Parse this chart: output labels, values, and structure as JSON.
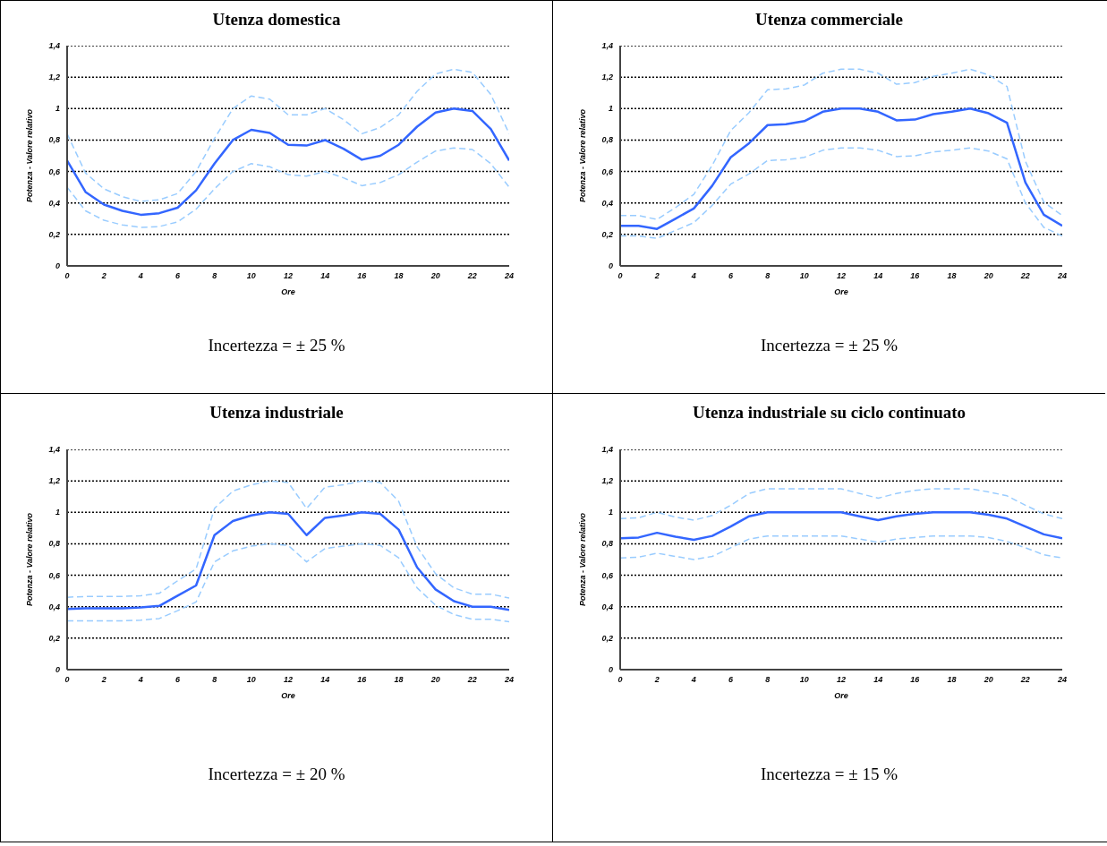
{
  "chart_data": [
    {
      "type": "line",
      "title": "Utenza domestica",
      "xlabel": "Ore",
      "ylabel": "Potenza - Valore relativo",
      "annotations": [
        "Incertezza = ± 25 %"
      ],
      "x": [
        0,
        1,
        2,
        3,
        4,
        5,
        6,
        7,
        8,
        9,
        10,
        11,
        12,
        13,
        14,
        15,
        16,
        17,
        18,
        19,
        20,
        21,
        22,
        23,
        24
      ],
      "xlim": [
        0,
        24
      ],
      "xticks": [
        0,
        2,
        4,
        6,
        8,
        10,
        12,
        14,
        16,
        18,
        20,
        22,
        24
      ],
      "ylim": [
        0,
        1.4
      ],
      "yticks": [
        {
          "value": 0,
          "label": "0"
        },
        {
          "value": 0.2,
          "label": "0,2"
        },
        {
          "value": 0.4,
          "label": "0,4"
        },
        {
          "value": 0.6,
          "label": "0,6"
        },
        {
          "value": 0.8,
          "label": "0,8"
        },
        {
          "value": 1,
          "label": "1"
        },
        {
          "value": 1.2,
          "label": "1,2"
        },
        {
          "value": 1.4,
          "label": "1,4"
        }
      ],
      "grid": "y",
      "legend": false,
      "marker": "none",
      "series": [
        {
          "color": "#99ccff",
          "line_style": "dashed",
          "values": [
            0.84,
            0.59,
            0.49,
            0.44,
            0.41,
            0.42,
            0.46,
            0.6,
            0.81,
            1.0,
            1.08,
            1.06,
            0.96,
            0.96,
            1.0,
            0.93,
            0.84,
            0.88,
            0.96,
            1.11,
            1.22,
            1.25,
            1.23,
            1.09,
            0.84
          ]
        },
        {
          "color": "#99ccff",
          "line_style": "dashed",
          "values": [
            0.5,
            0.35,
            0.29,
            0.26,
            0.245,
            0.25,
            0.28,
            0.36,
            0.49,
            0.6,
            0.65,
            0.63,
            0.58,
            0.57,
            0.6,
            0.56,
            0.51,
            0.53,
            0.58,
            0.66,
            0.73,
            0.75,
            0.74,
            0.65,
            0.5
          ]
        },
        {
          "color": "#3366ff",
          "line_style": "solid",
          "values": [
            0.67,
            0.47,
            0.39,
            0.35,
            0.325,
            0.335,
            0.37,
            0.48,
            0.65,
            0.8,
            0.865,
            0.845,
            0.77,
            0.765,
            0.8,
            0.745,
            0.675,
            0.7,
            0.77,
            0.885,
            0.975,
            1.0,
            0.985,
            0.87,
            0.67
          ]
        }
      ]
    },
    {
      "type": "line",
      "title": "Utenza commerciale",
      "xlabel": "Ore",
      "ylabel": "Potenza - Valore relativo",
      "annotations": [
        "Incertezza = ± 25 %"
      ],
      "x": [
        0,
        1,
        2,
        3,
        4,
        5,
        6,
        7,
        8,
        9,
        10,
        11,
        12,
        13,
        14,
        15,
        16,
        17,
        18,
        19,
        20,
        21,
        22,
        23,
        24
      ],
      "xlim": [
        0,
        24
      ],
      "xticks": [
        0,
        2,
        4,
        6,
        8,
        10,
        12,
        14,
        16,
        18,
        20,
        22,
        24
      ],
      "ylim": [
        0,
        1.4
      ],
      "yticks": [
        {
          "value": 0,
          "label": "0"
        },
        {
          "value": 0.2,
          "label": "0,2"
        },
        {
          "value": 0.4,
          "label": "0,4"
        },
        {
          "value": 0.6,
          "label": "0,6"
        },
        {
          "value": 0.8,
          "label": "0,8"
        },
        {
          "value": 1,
          "label": "1"
        },
        {
          "value": 1.2,
          "label": "1,2"
        },
        {
          "value": 1.4,
          "label": "1,4"
        }
      ],
      "grid": "y",
      "legend": false,
      "marker": "none",
      "series": [
        {
          "color": "#99ccff",
          "line_style": "dashed",
          "values": [
            0.32,
            0.32,
            0.295,
            0.37,
            0.455,
            0.64,
            0.86,
            0.975,
            1.12,
            1.125,
            1.15,
            1.225,
            1.25,
            1.25,
            1.225,
            1.155,
            1.165,
            1.205,
            1.225,
            1.25,
            1.215,
            1.14,
            0.665,
            0.405,
            0.32
          ]
        },
        {
          "color": "#99ccff",
          "line_style": "dashed",
          "values": [
            0.19,
            0.19,
            0.175,
            0.225,
            0.275,
            0.385,
            0.52,
            0.585,
            0.67,
            0.675,
            0.69,
            0.735,
            0.75,
            0.75,
            0.735,
            0.695,
            0.7,
            0.725,
            0.735,
            0.75,
            0.73,
            0.68,
            0.4,
            0.245,
            0.19
          ]
        },
        {
          "color": "#3366ff",
          "line_style": "solid",
          "values": [
            0.255,
            0.255,
            0.235,
            0.3,
            0.365,
            0.51,
            0.69,
            0.78,
            0.895,
            0.9,
            0.92,
            0.98,
            1.0,
            1.0,
            0.98,
            0.925,
            0.93,
            0.965,
            0.98,
            1.0,
            0.97,
            0.91,
            0.53,
            0.325,
            0.255
          ]
        }
      ]
    },
    {
      "type": "line",
      "title": "Utenza industriale",
      "xlabel": "Ore",
      "ylabel": "Potenza - Valore relativo",
      "annotations": [
        "Incertezza = ± 20 %"
      ],
      "x": [
        0,
        1,
        2,
        3,
        4,
        5,
        6,
        7,
        8,
        9,
        10,
        11,
        12,
        13,
        14,
        15,
        16,
        17,
        18,
        19,
        20,
        21,
        22,
        23,
        24
      ],
      "xlim": [
        0,
        24
      ],
      "xticks": [
        0,
        2,
        4,
        6,
        8,
        10,
        12,
        14,
        16,
        18,
        20,
        22,
        24
      ],
      "ylim": [
        0,
        1.4
      ],
      "yticks": [
        {
          "value": 0,
          "label": "0"
        },
        {
          "value": 0.2,
          "label": "0,2"
        },
        {
          "value": 0.4,
          "label": "0,4"
        },
        {
          "value": 0.6,
          "label": "0,6"
        },
        {
          "value": 0.8,
          "label": "0,8"
        },
        {
          "value": 1,
          "label": "1"
        },
        {
          "value": 1.2,
          "label": "1,2"
        },
        {
          "value": 1.4,
          "label": "1,4"
        }
      ],
      "grid": "y",
      "legend": false,
      "marker": "none",
      "series": [
        {
          "color": "#99ccff",
          "line_style": "dashed",
          "values": [
            0.46,
            0.465,
            0.465,
            0.465,
            0.47,
            0.485,
            0.565,
            0.64,
            1.025,
            1.135,
            1.175,
            1.2,
            1.19,
            1.025,
            1.16,
            1.175,
            1.2,
            1.19,
            1.07,
            0.78,
            0.61,
            0.52,
            0.48,
            0.48,
            0.455
          ]
        },
        {
          "color": "#99ccff",
          "line_style": "dashed",
          "values": [
            0.31,
            0.31,
            0.31,
            0.31,
            0.315,
            0.325,
            0.375,
            0.43,
            0.685,
            0.755,
            0.785,
            0.8,
            0.79,
            0.685,
            0.77,
            0.785,
            0.8,
            0.79,
            0.71,
            0.52,
            0.41,
            0.35,
            0.32,
            0.32,
            0.305
          ]
        },
        {
          "color": "#3366ff",
          "line_style": "solid",
          "values": [
            0.385,
            0.39,
            0.39,
            0.39,
            0.395,
            0.405,
            0.47,
            0.535,
            0.855,
            0.945,
            0.98,
            1.0,
            0.99,
            0.855,
            0.965,
            0.98,
            1.0,
            0.99,
            0.89,
            0.65,
            0.51,
            0.435,
            0.4,
            0.4,
            0.38
          ]
        }
      ]
    },
    {
      "type": "line",
      "title": "Utenza industriale su ciclo continuato",
      "xlabel": "Ore",
      "ylabel": "Potenza - Valore relativo",
      "annotations": [
        "Incertezza = ± 15 %"
      ],
      "x": [
        0,
        1,
        2,
        3,
        4,
        5,
        6,
        7,
        8,
        9,
        10,
        11,
        12,
        13,
        14,
        15,
        16,
        17,
        18,
        19,
        20,
        21,
        22,
        23,
        24
      ],
      "xlim": [
        0,
        24
      ],
      "xticks": [
        0,
        2,
        4,
        6,
        8,
        10,
        12,
        14,
        16,
        18,
        20,
        22,
        24
      ],
      "ylim": [
        0,
        1.4
      ],
      "yticks": [
        {
          "value": 0,
          "label": "0"
        },
        {
          "value": 0.2,
          "label": "0,2"
        },
        {
          "value": 0.4,
          "label": "0,4"
        },
        {
          "value": 0.6,
          "label": "0,6"
        },
        {
          "value": 0.8,
          "label": "0,8"
        },
        {
          "value": 1,
          "label": "1"
        },
        {
          "value": 1.2,
          "label": "1,2"
        },
        {
          "value": 1.4,
          "label": "1,4"
        }
      ],
      "grid": "y",
      "legend": false,
      "marker": "none",
      "series": [
        {
          "color": "#99ccff",
          "line_style": "dashed",
          "values": [
            0.96,
            0.965,
            1.0,
            0.97,
            0.95,
            0.98,
            1.045,
            1.12,
            1.15,
            1.15,
            1.15,
            1.15,
            1.15,
            1.12,
            1.09,
            1.12,
            1.14,
            1.15,
            1.15,
            1.15,
            1.13,
            1.105,
            1.045,
            0.99,
            0.96
          ]
        },
        {
          "color": "#99ccff",
          "line_style": "dashed",
          "values": [
            0.71,
            0.715,
            0.74,
            0.72,
            0.7,
            0.72,
            0.775,
            0.83,
            0.85,
            0.85,
            0.85,
            0.85,
            0.85,
            0.83,
            0.81,
            0.83,
            0.84,
            0.85,
            0.85,
            0.85,
            0.84,
            0.815,
            0.775,
            0.73,
            0.71
          ]
        },
        {
          "color": "#3366ff",
          "line_style": "solid",
          "values": [
            0.835,
            0.84,
            0.87,
            0.845,
            0.825,
            0.85,
            0.91,
            0.975,
            1.0,
            1.0,
            1.0,
            1.0,
            1.0,
            0.975,
            0.95,
            0.975,
            0.99,
            1.0,
            1.0,
            1.0,
            0.985,
            0.96,
            0.91,
            0.86,
            0.835
          ]
        }
      ]
    }
  ]
}
